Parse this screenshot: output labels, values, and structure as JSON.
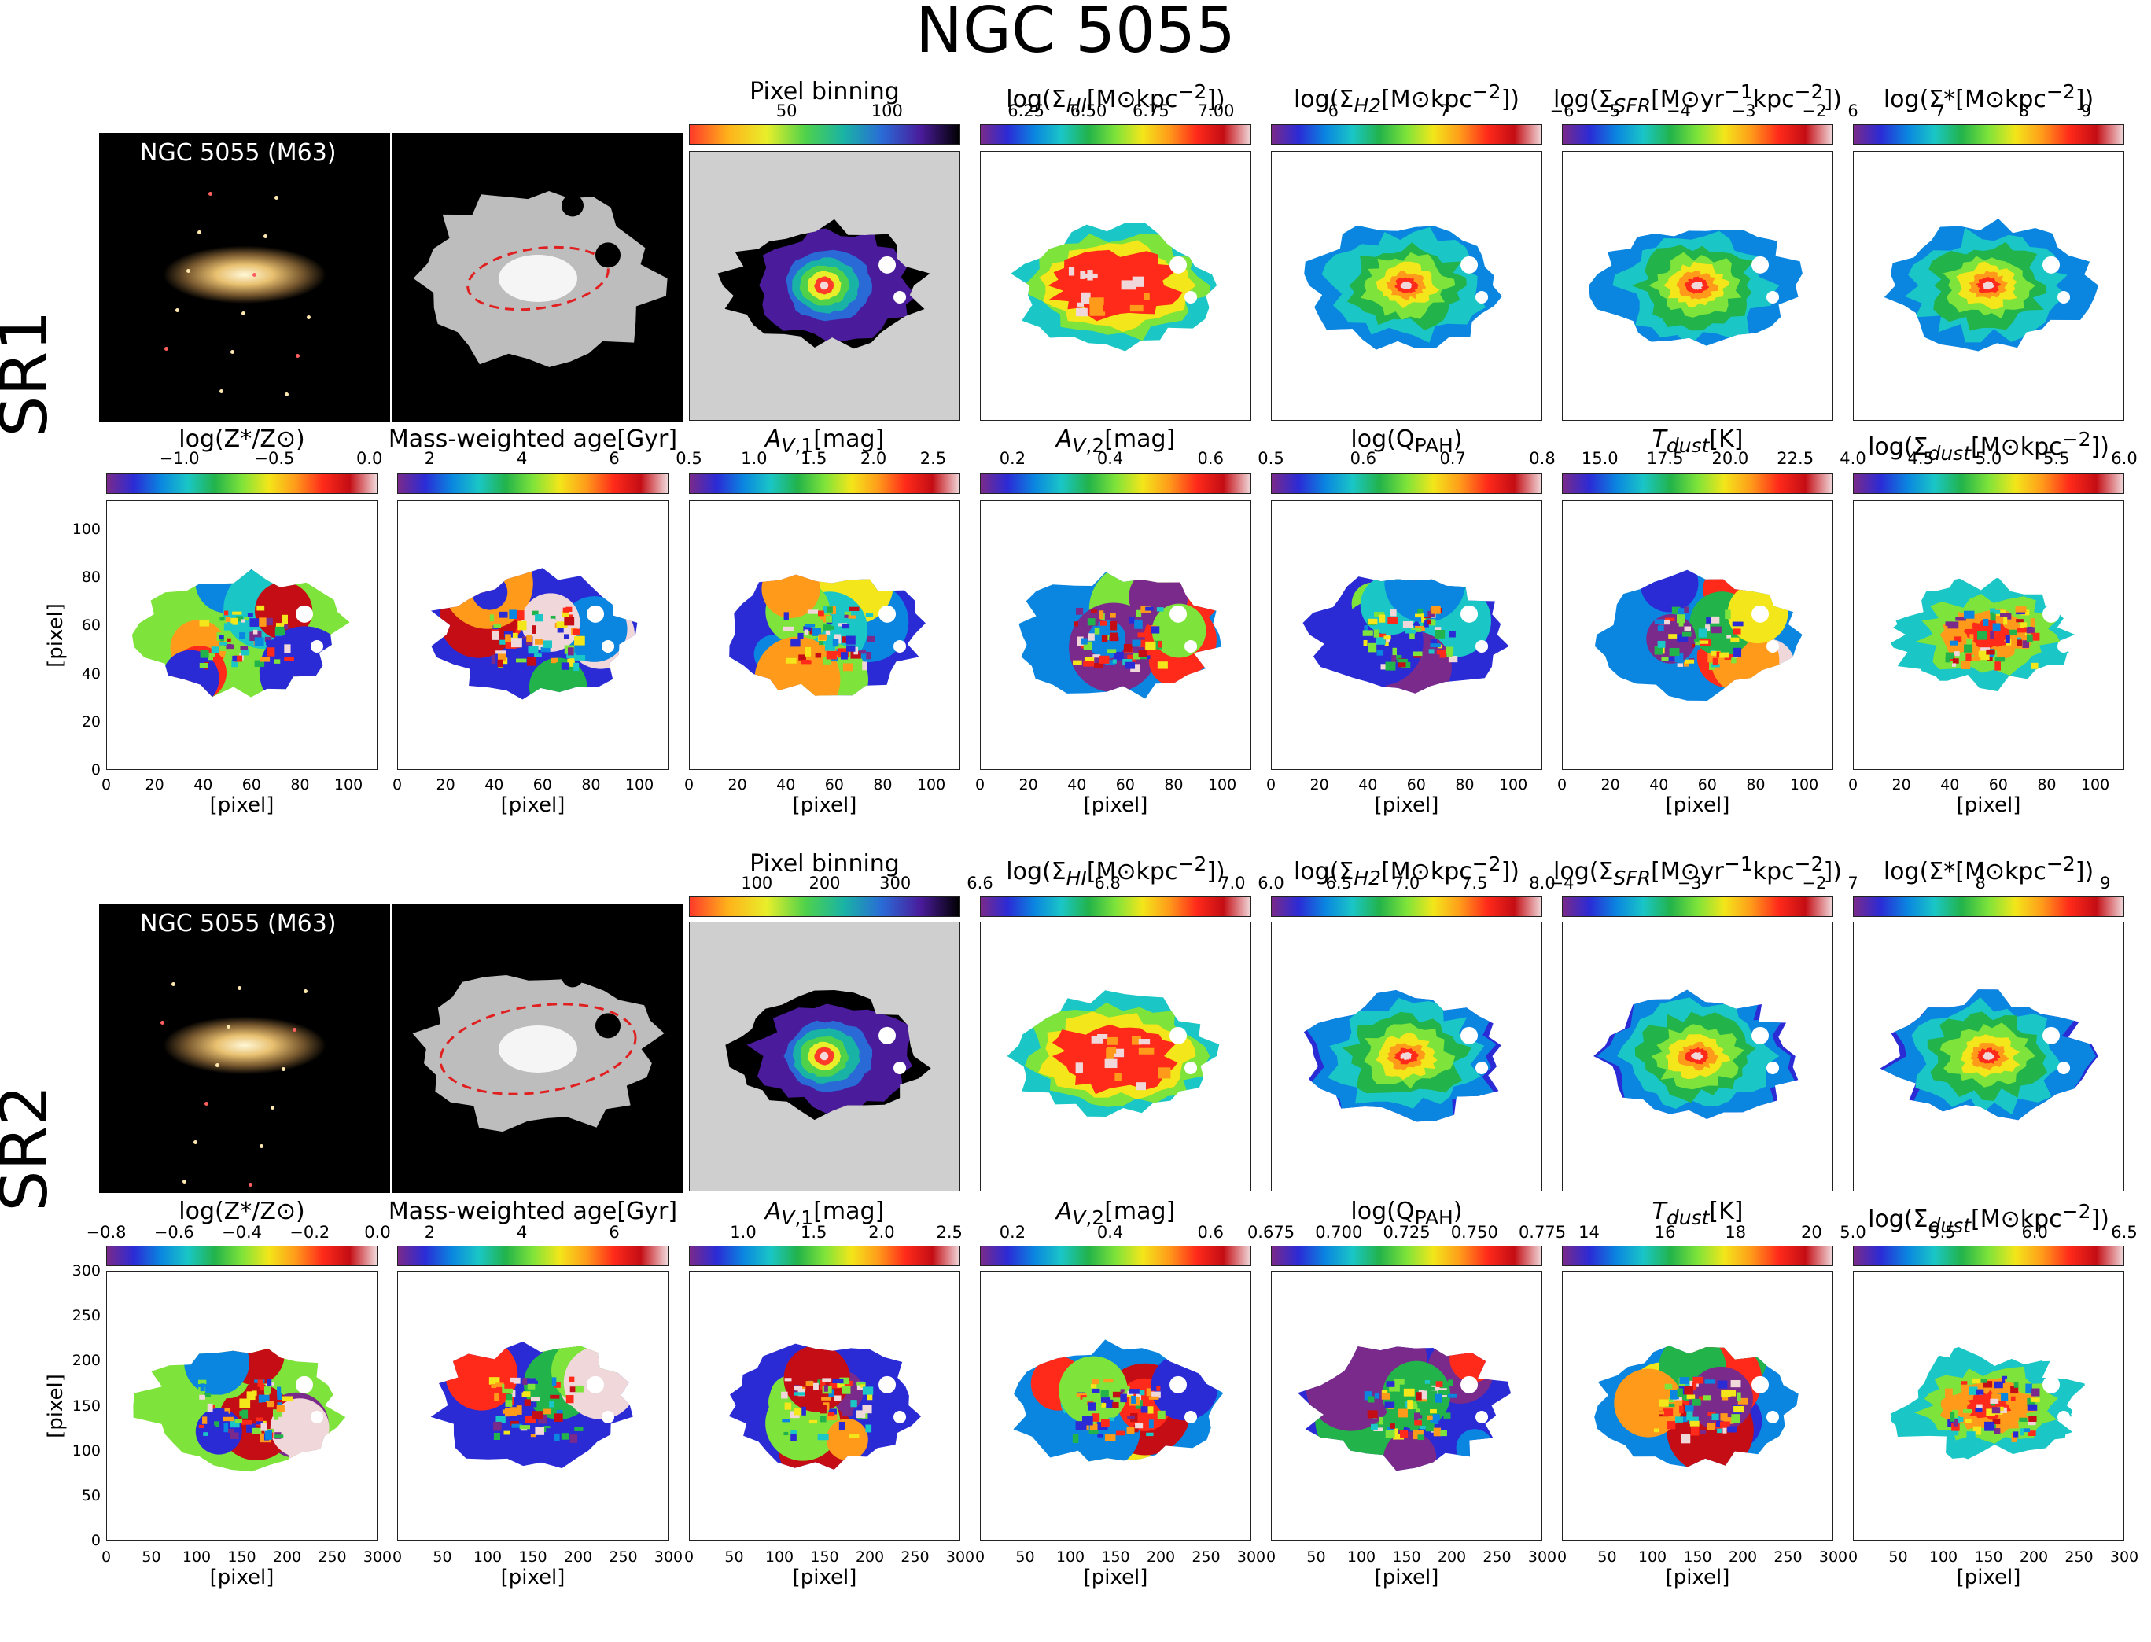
{
  "figure": {
    "title": "NGC 5055",
    "galaxy_label": "NGC 5055 (M63)",
    "axis_label": "[pixel]"
  },
  "colors": {
    "spectral": [
      "#7a2a8a",
      "#2b2bd6",
      "#0a86e0",
      "#1ac6c6",
      "#22b34a",
      "#7ee33a",
      "#f3e61a",
      "#ff9a1a",
      "#ff2a1a",
      "#c40d14",
      "#f0d8da"
    ],
    "binning": [
      "#ff3a2a",
      "#ffb21a",
      "#e8ee2a",
      "#4fd24a",
      "#19b3a5",
      "#2a6ad6",
      "#4a1b9a",
      "#000000"
    ],
    "sky": "#000000",
    "gray_bg": "#cfcfcf"
  },
  "rows": [
    {
      "label": "SR1",
      "xticks": [
        "0",
        "20",
        "40",
        "60",
        "80",
        "100"
      ],
      "yticks": [
        "0",
        "20",
        "40",
        "60",
        "80",
        "100"
      ],
      "top_panels": [
        {
          "title": "Pixel binning",
          "ticks": [
            "50",
            "100"
          ],
          "tickpos": [
            0.36,
            0.73
          ],
          "cmap": "binning"
        },
        {
          "title": "log(Σ_HI[M⊙kpc⁻²])",
          "ticks": [
            "6.25",
            "6.50",
            "6.75",
            "7.00"
          ],
          "tickpos": [
            0.17,
            0.4,
            0.63,
            0.87
          ],
          "cmap": "spectral"
        },
        {
          "title": "log(Σ_H2[M⊙kpc⁻²])",
          "ticks": [
            "6",
            "7"
          ],
          "tickpos": [
            0.23,
            0.64
          ],
          "cmap": "spectral"
        },
        {
          "title": "log(Σ_SFR[M⊙yr⁻¹kpc⁻²])",
          "ticks": [
            "−6",
            "−5",
            "−4",
            "−3",
            "−2"
          ],
          "tickpos": [
            0.0,
            0.17,
            0.43,
            0.67,
            0.93
          ],
          "cmap": "spectral"
        },
        {
          "title": "log(Σ*[M⊙kpc⁻²])",
          "ticks": [
            "6",
            "7",
            "8",
            "9"
          ],
          "tickpos": [
            0.0,
            0.32,
            0.63,
            0.86
          ],
          "cmap": "spectral"
        }
      ],
      "bottom_panels": [
        {
          "title": "log(Z*/Z⊙)",
          "ticks": [
            "−1.0",
            "−0.5",
            "0.0"
          ],
          "tickpos": [
            0.27,
            0.62,
            0.97
          ]
        },
        {
          "title": "Mass-weighted age[Gyr]",
          "ticks": [
            "2",
            "4",
            "6"
          ],
          "tickpos": [
            0.12,
            0.46,
            0.8
          ]
        },
        {
          "title": "A_V,1[mag]",
          "ticks": [
            "0.5",
            "1.0",
            "1.5",
            "2.0",
            "2.5"
          ],
          "tickpos": [
            0.0,
            0.24,
            0.46,
            0.68,
            0.9
          ]
        },
        {
          "title": "A_V,2[mag]",
          "ticks": [
            "0.2",
            "0.4",
            "0.6"
          ],
          "tickpos": [
            0.12,
            0.48,
            0.85
          ]
        },
        {
          "title": "log(Q_PAH)",
          "ticks": [
            "0.5",
            "0.6",
            "0.7",
            "0.8"
          ],
          "tickpos": [
            0.0,
            0.34,
            0.67,
            1.0
          ]
        },
        {
          "title": "T_dust[K]",
          "ticks": [
            "15.0",
            "17.5",
            "20.0",
            "22.5"
          ],
          "tickpos": [
            0.14,
            0.38,
            0.62,
            0.86
          ]
        },
        {
          "title": "log(Σ_dust[M⊙kpc⁻²])",
          "ticks": [
            "4.0",
            "4.5",
            "5.0",
            "5.5",
            "6.0"
          ],
          "tickpos": [
            0.0,
            0.25,
            0.5,
            0.75,
            1.0
          ]
        }
      ]
    },
    {
      "label": "SR2",
      "xticks": [
        "0",
        "50",
        "100",
        "150",
        "200",
        "250",
        "300"
      ],
      "yticks": [
        "0",
        "50",
        "100",
        "150",
        "200",
        "250",
        "300"
      ],
      "top_panels": [
        {
          "title": "Pixel binning",
          "ticks": [
            "100",
            "200",
            "300"
          ],
          "tickpos": [
            0.25,
            0.5,
            0.76
          ],
          "cmap": "binning"
        },
        {
          "title": "log(Σ_HI[M⊙kpc⁻²])",
          "ticks": [
            "6.6",
            "6.8",
            "7.0"
          ],
          "tickpos": [
            0.0,
            0.47,
            0.93
          ],
          "cmap": "spectral"
        },
        {
          "title": "log(Σ_H2[M⊙kpc⁻²])",
          "ticks": [
            "6.0",
            "6.5",
            "7.0",
            "7.5",
            "8.0"
          ],
          "tickpos": [
            0.0,
            0.25,
            0.5,
            0.75,
            1.0
          ],
          "cmap": "spectral"
        },
        {
          "title": "log(Σ_SFR[M⊙yr⁻¹kpc⁻²])",
          "ticks": [
            "−4",
            "−3",
            "−2"
          ],
          "tickpos": [
            0.0,
            0.47,
            0.93
          ],
          "cmap": "spectral"
        },
        {
          "title": "log(Σ*[M⊙kpc⁻²])",
          "ticks": [
            "7",
            "8",
            "9"
          ],
          "tickpos": [
            0.0,
            0.47,
            0.93
          ],
          "cmap": "spectral"
        }
      ],
      "bottom_panels": [
        {
          "title": "log(Z*/Z⊙)",
          "ticks": [
            "−0.8",
            "−0.6",
            "−0.4",
            "−0.2",
            "0.0"
          ],
          "tickpos": [
            0.0,
            0.25,
            0.5,
            0.75,
            1.0
          ]
        },
        {
          "title": "Mass-weighted age[Gyr]",
          "ticks": [
            "2",
            "4",
            "6"
          ],
          "tickpos": [
            0.12,
            0.46,
            0.8
          ]
        },
        {
          "title": "A_V,1[mag]",
          "ticks": [
            "1.0",
            "1.5",
            "2.0",
            "2.5"
          ],
          "tickpos": [
            0.2,
            0.46,
            0.71,
            0.96
          ]
        },
        {
          "title": "A_V,2[mag]",
          "ticks": [
            "0.2",
            "0.4",
            "0.6"
          ],
          "tickpos": [
            0.12,
            0.48,
            0.85
          ]
        },
        {
          "title": "log(Q_PAH)",
          "ticks": [
            "0.675",
            "0.700",
            "0.725",
            "0.750",
            "0.775"
          ],
          "tickpos": [
            0.0,
            0.25,
            0.5,
            0.75,
            1.0
          ]
        },
        {
          "title": "T_dust[K]",
          "ticks": [
            "14",
            "16",
            "18",
            "20"
          ],
          "tickpos": [
            0.1,
            0.38,
            0.64,
            0.92
          ]
        },
        {
          "title": "log(Σ_dust[M⊙kpc⁻²])",
          "ticks": [
            "5.0",
            "5.5",
            "6.0",
            "6.5"
          ],
          "tickpos": [
            0.0,
            0.33,
            0.67,
            1.0
          ]
        }
      ]
    }
  ]
}
